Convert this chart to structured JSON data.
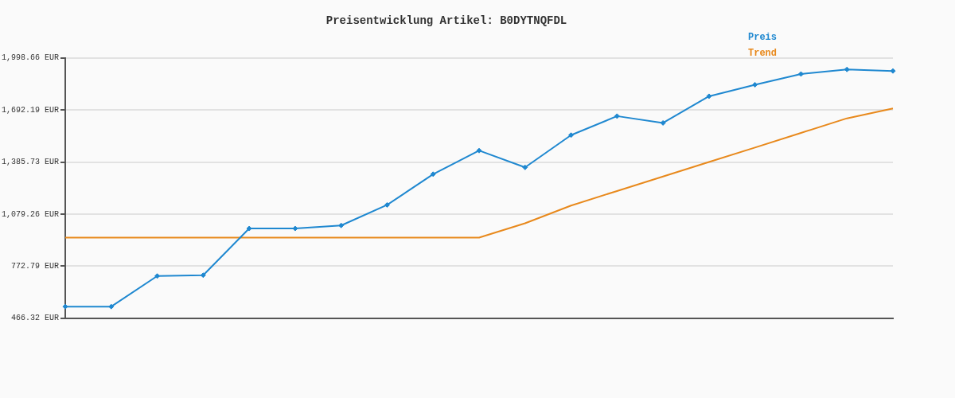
{
  "chart_data": {
    "type": "line",
    "title": "Preisentwicklung Artikel: B0DYTNQFDL",
    "categories": [
      null,
      null,
      null,
      null,
      null,
      null,
      null,
      null,
      null,
      null,
      null,
      null,
      null,
      null,
      null,
      null,
      null,
      null,
      null
    ],
    "series": [
      {
        "name": "Preis",
        "color": "#1f88d0",
        "marker": "diamond",
        "values": [
          534,
          534,
          714,
          719,
          994,
          994,
          1012,
          1133,
          1314,
          1453,
          1354,
          1544,
          1656,
          1616,
          1773,
          1841,
          1904,
          1931,
          1922
        ]
      },
      {
        "name": "Trend",
        "color": "#e8891c",
        "marker": "none",
        "values": [
          940,
          940,
          940,
          940,
          940,
          940,
          940,
          940,
          940,
          940,
          1025,
          1129,
          1215,
          1300,
          1386,
          1471,
          1557,
          1643,
          1701
        ]
      }
    ],
    "ylim": [
      466.32,
      1998.66
    ],
    "yticks": [
      {
        "value": 466.32,
        "label": "466.32 EUR"
      },
      {
        "value": 772.79,
        "label": "772.79 EUR"
      },
      {
        "value": 1079.26,
        "label": "1,079.26 EUR"
      },
      {
        "value": 1385.73,
        "label": "1,385.73 EUR"
      },
      {
        "value": 1692.19,
        "label": "1,692.19 EUR"
      },
      {
        "value": 1998.66,
        "label": "1,998.66 EUR"
      }
    ],
    "grid": "y",
    "legend": "top right",
    "line_style": "solid"
  }
}
